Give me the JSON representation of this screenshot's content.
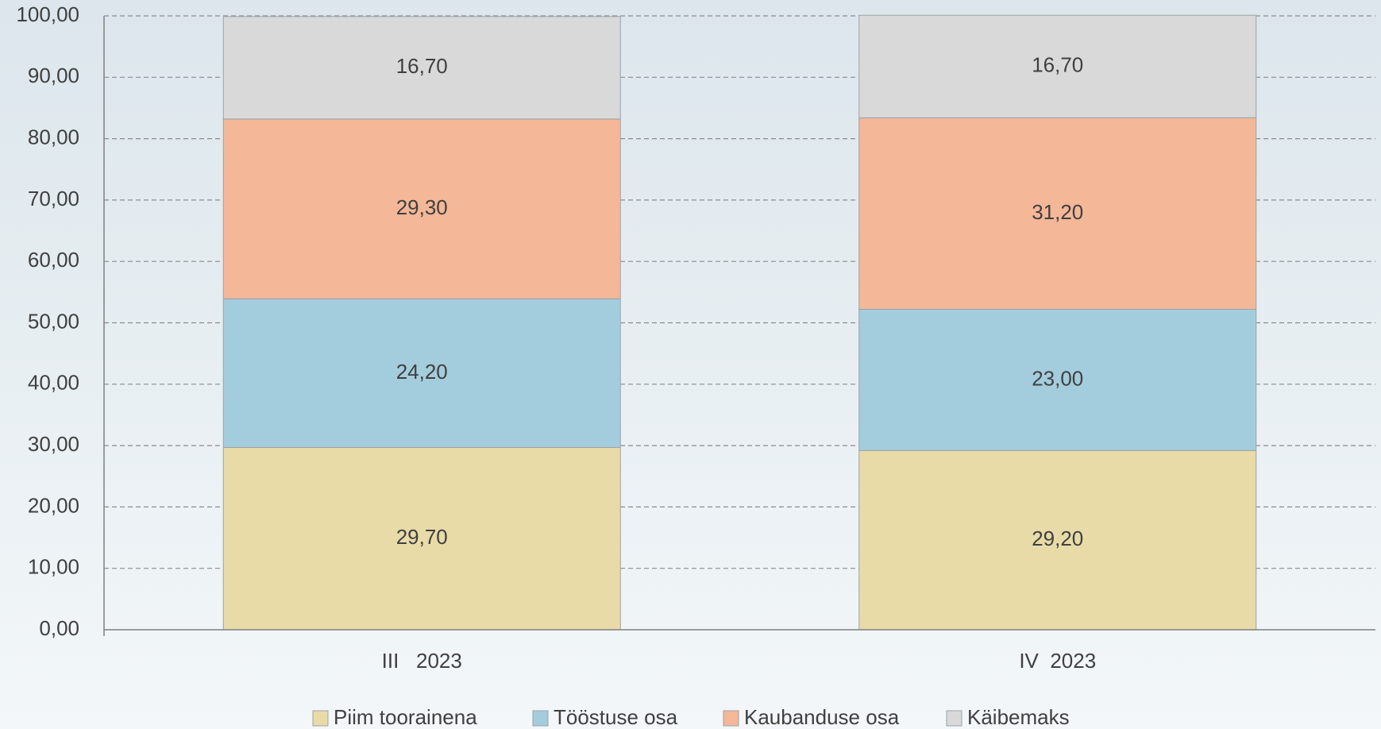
{
  "chart_data": {
    "type": "stacked_bar",
    "categories": [
      "III   2023",
      "IV  2023"
    ],
    "series": [
      {
        "name": "Piim toorainena",
        "color": "#e8dba8",
        "values": [
          29.7,
          29.2
        ],
        "value_labels": [
          "29,70",
          "29,20"
        ]
      },
      {
        "name": "Tööstuse osa",
        "color": "#a3cddc",
        "values": [
          24.2,
          23.0
        ],
        "value_labels": [
          "24,20",
          "23,00"
        ]
      },
      {
        "name": "Kaubanduse osa",
        "color": "#f4b797",
        "values": [
          29.3,
          31.2
        ],
        "value_labels": [
          "29,30",
          "31,20"
        ]
      },
      {
        "name": "Käibemaks",
        "color": "#d9d9d9",
        "values": [
          16.7,
          16.7
        ],
        "value_labels": [
          "16,70",
          "16,70"
        ]
      }
    ],
    "ylim": [
      0,
      100
    ],
    "yticks": [
      {
        "value": 0,
        "label": "0,00"
      },
      {
        "value": 10,
        "label": "10,00"
      },
      {
        "value": 20,
        "label": "20,00"
      },
      {
        "value": 30,
        "label": "30,00"
      },
      {
        "value": 40,
        "label": "40,00"
      },
      {
        "value": 50,
        "label": "50,00"
      },
      {
        "value": 60,
        "label": "60,00"
      },
      {
        "value": 70,
        "label": "70,00"
      },
      {
        "value": 80,
        "label": "80,00"
      },
      {
        "value": 90,
        "label": "90,00"
      },
      {
        "value": 100,
        "label": "100,00"
      }
    ],
    "grid": true,
    "legend": "bottom"
  }
}
